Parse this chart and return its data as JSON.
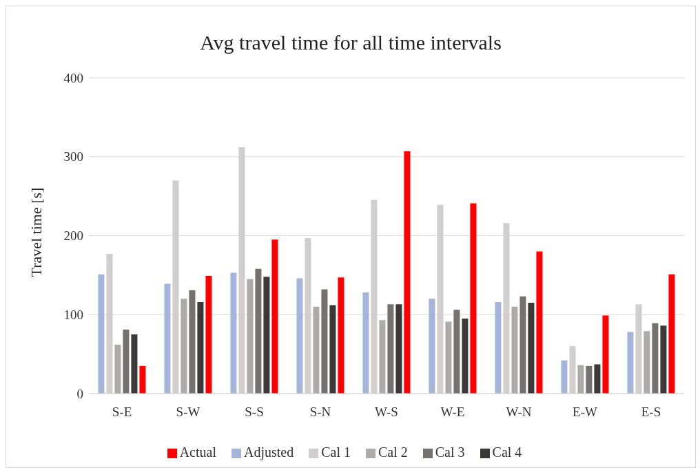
{
  "chart_data": {
    "type": "bar",
    "title": "Avg travel time for all time intervals",
    "ylabel": "Travel time [s]",
    "categories": [
      "S-E",
      "S-W",
      "S-S",
      "S-N",
      "W-S",
      "W-E",
      "W-N",
      "E-W",
      "E-S"
    ],
    "series": [
      {
        "name": "Adjusted",
        "color": "#a5b4d9",
        "values": [
          151,
          139,
          153,
          146,
          128,
          120,
          116,
          42,
          78
        ]
      },
      {
        "name": "Cal 1",
        "color": "#d0cece",
        "values": [
          177,
          270,
          312,
          197,
          245,
          239,
          216,
          60,
          113
        ]
      },
      {
        "name": "Cal 2",
        "color": "#aeaaaa",
        "values": [
          62,
          120,
          145,
          110,
          93,
          91,
          110,
          36,
          79
        ]
      },
      {
        "name": "Cal 3",
        "color": "#767171",
        "values": [
          81,
          131,
          158,
          132,
          113,
          106,
          123,
          35,
          89
        ]
      },
      {
        "name": "Cal 4",
        "color": "#3b3838",
        "values": [
          75,
          116,
          148,
          112,
          113,
          95,
          115,
          37,
          86
        ]
      },
      {
        "name": "Actual",
        "color": "#ff0000",
        "values": [
          35,
          149,
          195,
          147,
          307,
          241,
          180,
          99,
          151
        ]
      }
    ],
    "ylim": [
      0,
      400
    ],
    "yticks": [
      0,
      100,
      200,
      300,
      400
    ],
    "grid": "y",
    "legend": "bottom"
  }
}
